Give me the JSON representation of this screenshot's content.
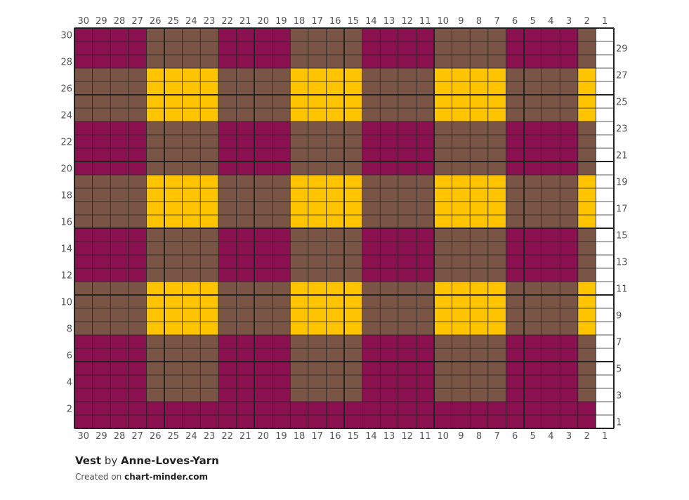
{
  "pattern": {
    "title": "Vest",
    "by_text": "by",
    "author": "Anne-Loves-Yarn",
    "created_on_text": "Created on",
    "site": "chart-minder.com"
  },
  "chart_data": {
    "type": "knitting-chart",
    "columns": 30,
    "rows": 30,
    "column_labels": [
      "30",
      "29",
      "28",
      "27",
      "26",
      "25",
      "24",
      "23",
      "22",
      "21",
      "20",
      "19",
      "18",
      "17",
      "16",
      "15",
      "14",
      "13",
      "12",
      "11",
      "10",
      "9",
      "8",
      "7",
      "6",
      "5",
      "4",
      "3",
      "2",
      "1"
    ],
    "left_row_labels": [
      "30",
      "28",
      "26",
      "24",
      "22",
      "20",
      "18",
      "16",
      "14",
      "12",
      "10",
      "8",
      "6",
      "4",
      "2"
    ],
    "right_row_labels": [
      "29",
      "27",
      "25",
      "23",
      "21",
      "19",
      "17",
      "15",
      "13",
      "11",
      "9",
      "7",
      "5",
      "3",
      "1"
    ],
    "colors": {
      "M": "#8b1050",
      "B": "#7a5545",
      "Y": "#ffc400",
      "W": "#ffffff"
    },
    "grid_line_color": "#222222",
    "major_line_every": 5,
    "grid_rows_top_to_bottom": [
      "MMMMBBBBMMMMBBBBMMMMBBBBMMMMBW",
      "MMMMBBBBMMMMBBBBMMMMBBBBMMMMBW",
      "MMMMBBBBMMMMBBBBMMMMBBBBMMMMBW",
      "BBBBYYYYBBBBYYYYBBBBYYYYBBBBYW",
      "BBBBYYYYBBBBYYYYBBBBYYYYBBBBYW",
      "BBBBYYYYBBBBYYYYBBBBYYYYBBBBYW",
      "BBBBYYYYBBBBYYYYBBBBYYYYBBBBYW",
      "MMMMBBBBMMMMBBBBMMMMBBBBMMMMBW",
      "MMMMBBBBMMMMBBBBMMMMBBBBMMMMBW",
      "MMMMBBBBMMMMBBBBMMMMBBBBMMMMBW",
      "MMMMBBBBMMMMBBBBMMMMBBBBMMMMBW",
      "BBBBYYYYBBBBYYYYBBBBYYYYBBBBYW",
      "BBBBYYYYBBBBYYYYBBBBYYYYBBBBYW",
      "BBBBYYYYBBBBYYYYBBBBYYYYBBBBYW",
      "BBBBYYYYBBBBYYYYBBBBYYYYBBBBYW",
      "MMMMBBBBMMMMBBBBMMMMBBBBMMMMBW",
      "MMMMBBBBMMMMBBBBMMMMBBBBMMMMBW",
      "MMMMBBBBMMMMBBBBMMMMBBBBMMMMBW",
      "MMMMBBBBMMMMBBBBMMMMBBBBMMMMBW",
      "BBBBYYYYBBBBYYYYBBBBYYYYBBBBYW",
      "BBBBYYYYBBBBYYYYBBBBYYYYBBBBYW",
      "BBBBYYYYBBBBYYYYBBBBYYYYBBBBYW",
      "BBBBYYYYBBBBYYYYBBBBYYYYBBBBYW",
      "MMMMBBBBMMMMBBBBMMMMBBBBMMMMBW",
      "MMMMBBBBMMMMBBBBMMMMBBBBMMMMBW",
      "MMMMBBBBMMMMBBBBMMMMBBBBMMMMBW",
      "MMMMBBBBMMMMBBBBMMMMBBBBMMMMBW",
      "MMMMBBBBMMMMBBBBMMMMBBBBMMMMBW",
      "MMMMMMMMMMMMMMMMMMMMMMMMMMMMMW",
      "MMMMMMMMMMMMMMMMMMMMMMMMMMMMMW"
    ]
  }
}
